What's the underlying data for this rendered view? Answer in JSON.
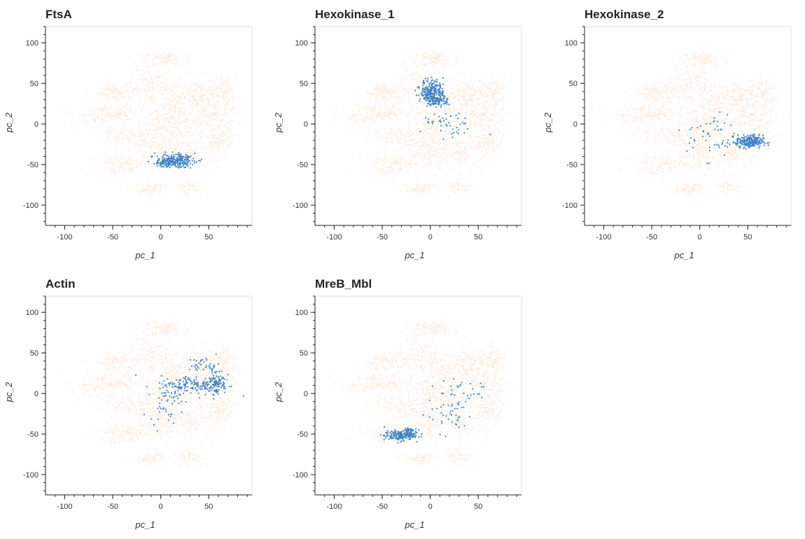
{
  "chart_data": [
    {
      "type": "scatter",
      "title": "FtsA",
      "xlabel": "pc_1",
      "ylabel": "pc_2",
      "xlim": [
        -120,
        95
      ],
      "ylim": [
        -125,
        120
      ],
      "xticks": [
        -100,
        -50,
        0,
        50
      ],
      "yticks": [
        -100,
        -50,
        0,
        50,
        100
      ],
      "background_color": "#fde9d6",
      "highlight_color": "#3f84c4",
      "highlight_regions": [
        {
          "cx": 15,
          "cy": -45,
          "sx": 10,
          "sy": 4,
          "n": 220
        },
        {
          "cx": 5,
          "cy": -48,
          "sx": 4,
          "sy": 3,
          "n": 60
        }
      ]
    },
    {
      "type": "scatter",
      "title": "Hexokinase_1",
      "xlabel": "pc_1",
      "ylabel": "pc_2",
      "xlim": [
        -120,
        95
      ],
      "ylim": [
        -125,
        120
      ],
      "xticks": [
        -100,
        -50,
        0,
        50
      ],
      "yticks": [
        -100,
        -50,
        0,
        50,
        100
      ],
      "background_color": "#fde9d6",
      "highlight_color": "#3f84c4",
      "highlight_regions": [
        {
          "cx": 2,
          "cy": 40,
          "sx": 6,
          "sy": 7,
          "n": 250
        },
        {
          "cx": 8,
          "cy": 28,
          "sx": 6,
          "sy": 3,
          "n": 80
        },
        {
          "cx": 20,
          "cy": -2,
          "sx": 14,
          "sy": 8,
          "n": 45
        }
      ]
    },
    {
      "type": "scatter",
      "title": "Hexokinase_2",
      "xlabel": "pc_1",
      "ylabel": "pc_2",
      "xlim": [
        -120,
        95
      ],
      "ylim": [
        -125,
        120
      ],
      "xticks": [
        -100,
        -50,
        0,
        50
      ],
      "yticks": [
        -100,
        -50,
        0,
        50,
        100
      ],
      "background_color": "#fde9d6",
      "highlight_color": "#3f84c4",
      "highlight_regions": [
        {
          "cx": 52,
          "cy": -22,
          "sx": 7,
          "sy": 4,
          "n": 230
        },
        {
          "cx": 15,
          "cy": -15,
          "sx": 14,
          "sy": 14,
          "n": 55
        }
      ]
    },
    {
      "type": "scatter",
      "title": "Actin",
      "xlabel": "pc_1",
      "ylabel": "pc_2",
      "xlim": [
        -120,
        95
      ],
      "ylim": [
        -125,
        120
      ],
      "xticks": [
        -100,
        -50,
        0,
        50
      ],
      "yticks": [
        -100,
        -50,
        0,
        50,
        100
      ],
      "background_color": "#fde9d6",
      "highlight_color": "#3f84c4",
      "highlight_regions": [
        {
          "cx": 35,
          "cy": 10,
          "sx": 18,
          "sy": 6,
          "n": 160
        },
        {
          "cx": 58,
          "cy": 15,
          "sx": 5,
          "sy": 8,
          "n": 90
        },
        {
          "cx": 5,
          "cy": -10,
          "sx": 8,
          "sy": 12,
          "n": 50
        },
        {
          "cx": 45,
          "cy": 35,
          "sx": 8,
          "sy": 5,
          "n": 35
        }
      ]
    },
    {
      "type": "scatter",
      "title": "MreB_Mbl",
      "xlabel": "pc_1",
      "ylabel": "pc_2",
      "xlim": [
        -120,
        95
      ],
      "ylim": [
        -125,
        120
      ],
      "xticks": [
        -100,
        -50,
        0,
        50
      ],
      "yticks": [
        -100,
        -50,
        0,
        50,
        100
      ],
      "background_color": "#fde9d6",
      "highlight_color": "#3f84c4",
      "highlight_regions": [
        {
          "cx": -32,
          "cy": -52,
          "sx": 8,
          "sy": 3,
          "n": 160
        },
        {
          "cx": -22,
          "cy": -47,
          "sx": 4,
          "sy": 3,
          "n": 50
        },
        {
          "cx": 20,
          "cy": -25,
          "sx": 12,
          "sy": 12,
          "n": 45
        },
        {
          "cx": 30,
          "cy": 5,
          "sx": 15,
          "sy": 6,
          "n": 25
        }
      ]
    }
  ]
}
